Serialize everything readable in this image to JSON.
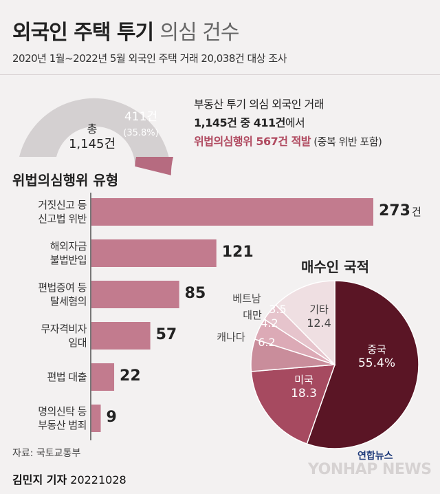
{
  "header": {
    "title_bold": "외국인 주택 투기",
    "title_light": "의심 건수",
    "subtitle": "2020년 1월~2022년 5월 외국인 주택 거래 20,038건 대상 조사"
  },
  "gauge": {
    "total_label": "총",
    "total_value": "1,145건",
    "part_value": "411건",
    "part_pct": "(35.8%)",
    "total": 1145,
    "part": 411,
    "colors": {
      "rest": "#d4d0d1",
      "part": "#b66b80"
    }
  },
  "callout": {
    "line1": "부동산 투기 의심 외국인 거래",
    "line2a": "1,145건 중 411건",
    "line2b": "에서",
    "line3a": "위법의심행위 567건 적발",
    "line3b": " (중복 위반 포함)"
  },
  "bars_title": "위법의심행위 유형",
  "pie_title": "매수인 국적",
  "chart_data": [
    {
      "type": "bar",
      "orientation": "horizontal",
      "title": "위법의심행위 유형",
      "categories": [
        [
          "거짓신고 등",
          "신고법 위반"
        ],
        [
          "해외자금",
          "불법반입"
        ],
        [
          "편법증여 등",
          "탈세혐의"
        ],
        [
          "무자격비자",
          "임대"
        ],
        [
          "편법 대출"
        ],
        [
          "명의신탁 등",
          "부동산 범죄"
        ]
      ],
      "values": [
        273,
        121,
        85,
        57,
        22,
        9
      ],
      "value_labels": [
        "273",
        "121",
        "85",
        "57",
        "22",
        "9"
      ],
      "unit": "건",
      "color": "#c27b8e"
    },
    {
      "type": "pie",
      "title": "매수인 국적",
      "slices": [
        {
          "label": "중국",
          "value": 55.4,
          "display": "55.4%",
          "color": "#5a1525"
        },
        {
          "label": "미국",
          "value": 18.3,
          "display": "18.3",
          "color": "#a64a60"
        },
        {
          "label": "캐나다",
          "value": 6.2,
          "display": "6.2",
          "color": "#c98d9b"
        },
        {
          "label": "대만",
          "value": 4.2,
          "display": "4.2",
          "color": "#dcaab6"
        },
        {
          "label": "베트남",
          "value": 3.5,
          "display": "3.5",
          "color": "#e6c4cc"
        },
        {
          "label": "기타",
          "value": 12.4,
          "display": "12.4",
          "color": "#efdfe2"
        }
      ]
    }
  ],
  "source": "자료: 국토교통부",
  "byline": {
    "name": "김민지 기자",
    "date": "20221028"
  },
  "brand": {
    "logo": "연합뉴스",
    "watermark": "YONHAP NEWS"
  }
}
